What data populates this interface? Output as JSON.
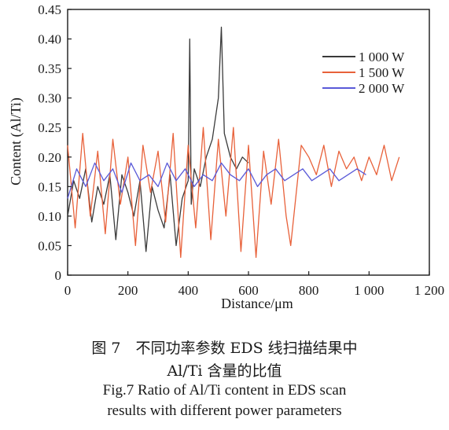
{
  "chart_data": {
    "type": "line",
    "xlabel": "Distance/μm",
    "ylabel": "Content (Al/Ti)",
    "xlim": [
      0,
      1200
    ],
    "ylim": [
      0,
      0.45
    ],
    "x_ticks": [
      "0",
      "200",
      "400",
      "600",
      "800",
      "1 000",
      "1 200"
    ],
    "y_ticks": [
      "0",
      "0.05",
      "0.10",
      "0.15",
      "0.20",
      "0.25",
      "0.30",
      "0.35",
      "0.40",
      "0.45"
    ],
    "legend_position": "top-right",
    "series": [
      {
        "name": "1 000 W",
        "color": "#3a3a3a",
        "x": [
          0,
          20,
          40,
          60,
          80,
          100,
          120,
          140,
          160,
          180,
          200,
          220,
          240,
          260,
          280,
          300,
          320,
          340,
          360,
          380,
          400,
          405,
          410,
          420,
          440,
          460,
          480,
          500,
          510,
          520,
          540,
          560,
          580,
          600
        ],
        "values": [
          0.1,
          0.16,
          0.13,
          0.18,
          0.09,
          0.15,
          0.12,
          0.17,
          0.06,
          0.17,
          0.14,
          0.1,
          0.16,
          0.04,
          0.15,
          0.11,
          0.08,
          0.17,
          0.05,
          0.13,
          0.16,
          0.4,
          0.12,
          0.18,
          0.15,
          0.2,
          0.23,
          0.3,
          0.42,
          0.24,
          0.2,
          0.18,
          0.2,
          0.19
        ]
      },
      {
        "name": "1 500 W",
        "color": "#e8613a",
        "x": [
          0,
          25,
          50,
          75,
          100,
          125,
          150,
          175,
          200,
          225,
          250,
          275,
          300,
          325,
          350,
          375,
          400,
          425,
          450,
          475,
          500,
          525,
          550,
          575,
          600,
          625,
          650,
          675,
          700,
          725,
          740,
          775,
          800,
          825,
          850,
          875,
          900,
          925,
          950,
          975,
          1000,
          1025,
          1050,
          1075,
          1100
        ],
        "values": [
          0.22,
          0.08,
          0.24,
          0.1,
          0.21,
          0.07,
          0.23,
          0.12,
          0.2,
          0.05,
          0.22,
          0.14,
          0.21,
          0.09,
          0.24,
          0.03,
          0.22,
          0.08,
          0.25,
          0.06,
          0.23,
          0.1,
          0.25,
          0.04,
          0.22,
          0.03,
          0.21,
          0.12,
          0.23,
          0.1,
          0.05,
          0.22,
          0.2,
          0.17,
          0.22,
          0.15,
          0.21,
          0.18,
          0.2,
          0.16,
          0.2,
          0.17,
          0.22,
          0.16,
          0.2
        ]
      },
      {
        "name": "2 000 W",
        "color": "#5a5ad8",
        "x": [
          0,
          30,
          60,
          90,
          120,
          150,
          180,
          210,
          240,
          270,
          300,
          330,
          360,
          390,
          420,
          450,
          480,
          510,
          540,
          570,
          600,
          630,
          660,
          690,
          720,
          750,
          780,
          810,
          840,
          870,
          900,
          930,
          960,
          990
        ],
        "values": [
          0.13,
          0.18,
          0.15,
          0.19,
          0.16,
          0.18,
          0.14,
          0.19,
          0.16,
          0.17,
          0.15,
          0.19,
          0.16,
          0.18,
          0.15,
          0.17,
          0.16,
          0.19,
          0.17,
          0.16,
          0.18,
          0.15,
          0.17,
          0.18,
          0.16,
          0.17,
          0.18,
          0.16,
          0.17,
          0.18,
          0.16,
          0.17,
          0.18,
          0.17
        ]
      }
    ]
  },
  "caption": {
    "zh_line1": "图 7　不同功率参数 EDS 线扫描结果中",
    "zh_line2": "Al/Ti 含量的比值",
    "en_line1": "Fig.7 Ratio of Al/Ti content in EDS scan",
    "en_line2": "results with different power parameters"
  }
}
